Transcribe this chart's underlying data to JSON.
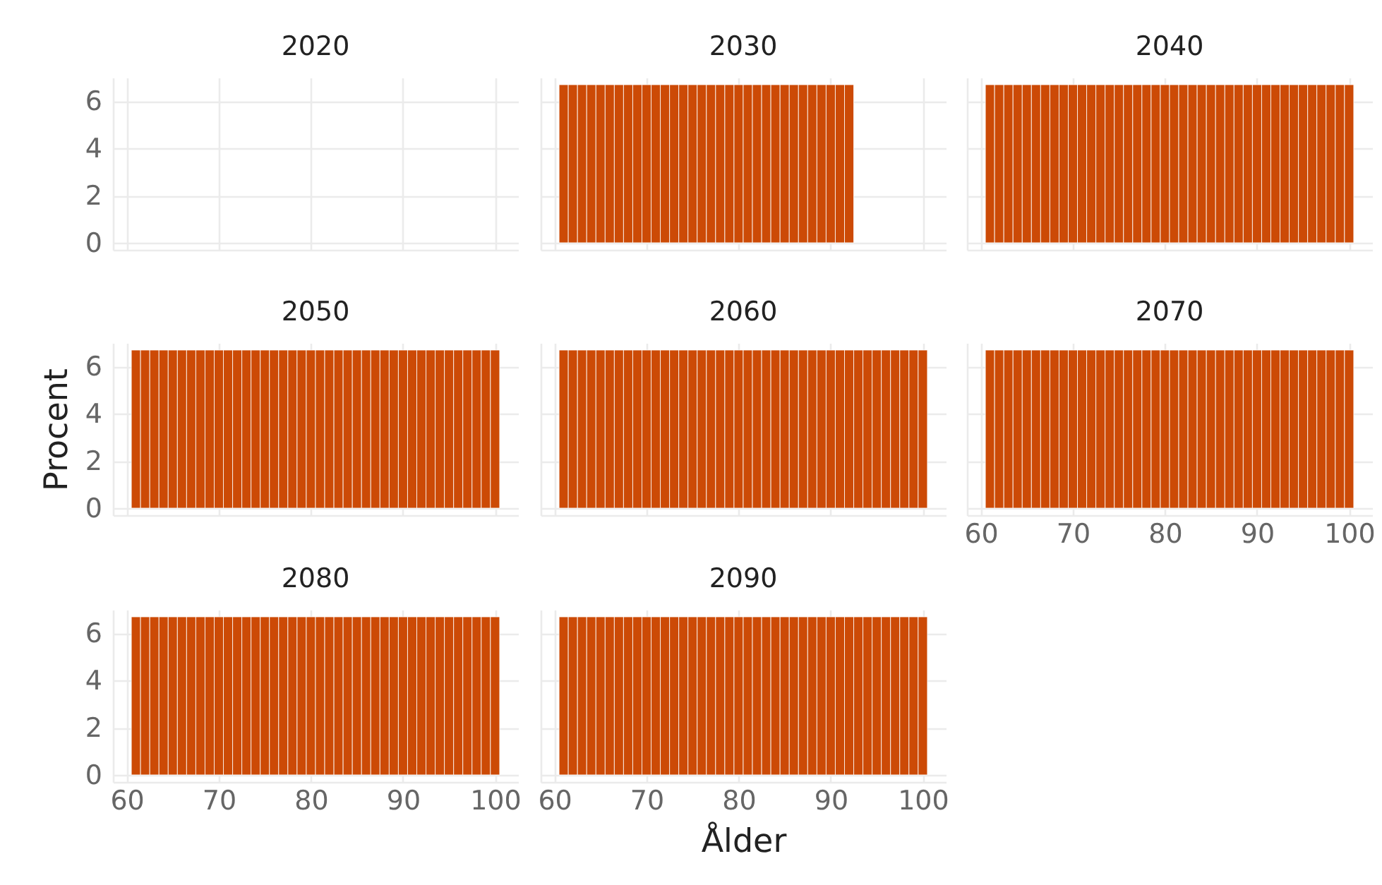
{
  "chart_data": [
    {
      "type": "bar",
      "title": "2020",
      "color": "#cc4a06",
      "xlim": [
        58.5,
        102.5
      ],
      "ylim": [
        -0.3,
        7
      ],
      "xticks": [
        60,
        70,
        80,
        90,
        100
      ],
      "yticks": [
        0,
        2,
        4,
        6
      ],
      "grid": true,
      "tick_labels": "y"
    },
    {
      "type": "bar",
      "title": "2030",
      "x": [
        61,
        62,
        63,
        64,
        65,
        66,
        67,
        68,
        69,
        70,
        71,
        72,
        73,
        74,
        75,
        76,
        77,
        78,
        79,
        80,
        81,
        82,
        83,
        84,
        85,
        86,
        87,
        88,
        89,
        90,
        91,
        92
      ],
      "values": [
        6.7,
        6.7,
        6.7,
        6.7,
        6.7,
        6.7,
        6.7,
        6.7,
        6.7,
        6.7,
        6.7,
        6.7,
        6.7,
        6.7,
        6.7,
        6.7,
        6.7,
        6.7,
        6.7,
        6.7,
        6.7,
        6.7,
        6.7,
        6.7,
        6.7,
        6.7,
        6.7,
        6.7,
        6.7,
        6.7,
        6.7,
        6.7
      ],
      "color": "#cc4a06",
      "xlim": [
        58.5,
        102.5
      ],
      "ylim": [
        -0.3,
        7
      ],
      "xticks": [
        60,
        70,
        80,
        90,
        100
      ],
      "yticks": [
        0,
        2,
        4,
        6
      ],
      "grid": true,
      "tick_labels": false
    },
    {
      "type": "bar",
      "title": "2040",
      "x": [
        61,
        62,
        63,
        64,
        65,
        66,
        67,
        68,
        69,
        70,
        71,
        72,
        73,
        74,
        75,
        76,
        77,
        78,
        79,
        80,
        81,
        82,
        83,
        84,
        85,
        86,
        87,
        88,
        89,
        90,
        91,
        92,
        93,
        94,
        95,
        96,
        97,
        98,
        99,
        100
      ],
      "values": [
        6.7,
        6.7,
        6.7,
        6.7,
        6.7,
        6.7,
        6.7,
        6.7,
        6.7,
        6.7,
        6.7,
        6.7,
        6.7,
        6.7,
        6.7,
        6.7,
        6.7,
        6.7,
        6.7,
        6.7,
        6.7,
        6.7,
        6.7,
        6.7,
        6.7,
        6.7,
        6.7,
        6.7,
        6.7,
        6.7,
        6.7,
        6.7,
        6.7,
        6.7,
        6.7,
        6.7,
        6.7,
        6.7,
        6.7,
        6.7
      ],
      "color": "#cc4a06",
      "xlim": [
        58.5,
        102.5
      ],
      "ylim": [
        -0.3,
        7
      ],
      "xticks": [
        60,
        70,
        80,
        90,
        100
      ],
      "yticks": [
        0,
        2,
        4,
        6
      ],
      "grid": true,
      "tick_labels": false
    },
    {
      "type": "bar",
      "title": "2050",
      "ylabel": "Procent",
      "x": [
        61,
        62,
        63,
        64,
        65,
        66,
        67,
        68,
        69,
        70,
        71,
        72,
        73,
        74,
        75,
        76,
        77,
        78,
        79,
        80,
        81,
        82,
        83,
        84,
        85,
        86,
        87,
        88,
        89,
        90,
        91,
        92,
        93,
        94,
        95,
        96,
        97,
        98,
        99,
        100
      ],
      "values": [
        6.7,
        6.7,
        6.7,
        6.7,
        6.7,
        6.7,
        6.7,
        6.7,
        6.7,
        6.7,
        6.7,
        6.7,
        6.7,
        6.7,
        6.7,
        6.7,
        6.7,
        6.7,
        6.7,
        6.7,
        6.7,
        6.7,
        6.7,
        6.7,
        6.7,
        6.7,
        6.7,
        6.7,
        6.7,
        6.7,
        6.7,
        6.7,
        6.7,
        6.7,
        6.7,
        6.7,
        6.7,
        6.7,
        6.7,
        6.7
      ],
      "color": "#cc4a06",
      "xlim": [
        58.5,
        102.5
      ],
      "ylim": [
        -0.3,
        7
      ],
      "xticks": [
        60,
        70,
        80,
        90,
        100
      ],
      "yticks": [
        0,
        2,
        4,
        6
      ],
      "grid": true,
      "tick_labels": "y"
    },
    {
      "type": "bar",
      "title": "2060",
      "x": [
        61,
        62,
        63,
        64,
        65,
        66,
        67,
        68,
        69,
        70,
        71,
        72,
        73,
        74,
        75,
        76,
        77,
        78,
        79,
        80,
        81,
        82,
        83,
        84,
        85,
        86,
        87,
        88,
        89,
        90,
        91,
        92,
        93,
        94,
        95,
        96,
        97,
        98,
        99,
        100
      ],
      "values": [
        6.7,
        6.7,
        6.7,
        6.7,
        6.7,
        6.7,
        6.7,
        6.7,
        6.7,
        6.7,
        6.7,
        6.7,
        6.7,
        6.7,
        6.7,
        6.7,
        6.7,
        6.7,
        6.7,
        6.7,
        6.7,
        6.7,
        6.7,
        6.7,
        6.7,
        6.7,
        6.7,
        6.7,
        6.7,
        6.7,
        6.7,
        6.7,
        6.7,
        6.7,
        6.7,
        6.7,
        6.7,
        6.7,
        6.7,
        6.7
      ],
      "color": "#cc4a06",
      "xlim": [
        58.5,
        102.5
      ],
      "ylim": [
        -0.3,
        7
      ],
      "xticks": [
        60,
        70,
        80,
        90,
        100
      ],
      "yticks": [
        0,
        2,
        4,
        6
      ],
      "grid": true,
      "tick_labels": false
    },
    {
      "type": "bar",
      "title": "2070",
      "x": [
        61,
        62,
        63,
        64,
        65,
        66,
        67,
        68,
        69,
        70,
        71,
        72,
        73,
        74,
        75,
        76,
        77,
        78,
        79,
        80,
        81,
        82,
        83,
        84,
        85,
        86,
        87,
        88,
        89,
        90,
        91,
        92,
        93,
        94,
        95,
        96,
        97,
        98,
        99,
        100
      ],
      "values": [
        6.7,
        6.7,
        6.7,
        6.7,
        6.7,
        6.7,
        6.7,
        6.7,
        6.7,
        6.7,
        6.7,
        6.7,
        6.7,
        6.7,
        6.7,
        6.7,
        6.7,
        6.7,
        6.7,
        6.7,
        6.7,
        6.7,
        6.7,
        6.7,
        6.7,
        6.7,
        6.7,
        6.7,
        6.7,
        6.7,
        6.7,
        6.7,
        6.7,
        6.7,
        6.7,
        6.7,
        6.7,
        6.7,
        6.7,
        6.7
      ],
      "color": "#cc4a06",
      "xlim": [
        58.5,
        102.5
      ],
      "ylim": [
        -0.3,
        7
      ],
      "xticks": [
        60,
        70,
        80,
        90,
        100
      ],
      "yticks": [
        0,
        2,
        4,
        6
      ],
      "grid": true,
      "tick_labels": "x"
    },
    {
      "type": "bar",
      "title": "2080",
      "x": [
        61,
        62,
        63,
        64,
        65,
        66,
        67,
        68,
        69,
        70,
        71,
        72,
        73,
        74,
        75,
        76,
        77,
        78,
        79,
        80,
        81,
        82,
        83,
        84,
        85,
        86,
        87,
        88,
        89,
        90,
        91,
        92,
        93,
        94,
        95,
        96,
        97,
        98,
        99,
        100
      ],
      "values": [
        6.7,
        6.7,
        6.7,
        6.7,
        6.7,
        6.7,
        6.7,
        6.7,
        6.7,
        6.7,
        6.7,
        6.7,
        6.7,
        6.7,
        6.7,
        6.7,
        6.7,
        6.7,
        6.7,
        6.7,
        6.7,
        6.7,
        6.7,
        6.7,
        6.7,
        6.7,
        6.7,
        6.7,
        6.7,
        6.7,
        6.7,
        6.7,
        6.7,
        6.7,
        6.7,
        6.7,
        6.7,
        6.7,
        6.7,
        6.7
      ],
      "color": "#cc4a06",
      "xlim": [
        58.5,
        102.5
      ],
      "ylim": [
        -0.3,
        7
      ],
      "xticks": [
        60,
        70,
        80,
        90,
        100
      ],
      "yticks": [
        0,
        2,
        4,
        6
      ],
      "grid": true
    },
    {
      "type": "bar",
      "title": "2090",
      "xlabel": "Ålder",
      "x": [
        61,
        62,
        63,
        64,
        65,
        66,
        67,
        68,
        69,
        70,
        71,
        72,
        73,
        74,
        75,
        76,
        77,
        78,
        79,
        80,
        81,
        82,
        83,
        84,
        85,
        86,
        87,
        88,
        89,
        90,
        91,
        92,
        93,
        94,
        95,
        96,
        97,
        98,
        99,
        100
      ],
      "values": [
        6.7,
        6.7,
        6.7,
        6.7,
        6.7,
        6.7,
        6.7,
        6.7,
        6.7,
        6.7,
        6.7,
        6.7,
        6.7,
        6.7,
        6.7,
        6.7,
        6.7,
        6.7,
        6.7,
        6.7,
        6.7,
        6.7,
        6.7,
        6.7,
        6.7,
        6.7,
        6.7,
        6.7,
        6.7,
        6.7,
        6.7,
        6.7,
        6.7,
        6.7,
        6.7,
        6.7,
        6.7,
        6.7,
        6.7,
        6.7
      ],
      "color": "#cc4a06",
      "xlim": [
        58.5,
        102.5
      ],
      "ylim": [
        -0.3,
        7
      ],
      "xticks": [
        60,
        70,
        80,
        90,
        100
      ],
      "yticks": [
        0,
        2,
        4,
        6
      ],
      "grid": true,
      "tick_labels": "x"
    }
  ]
}
